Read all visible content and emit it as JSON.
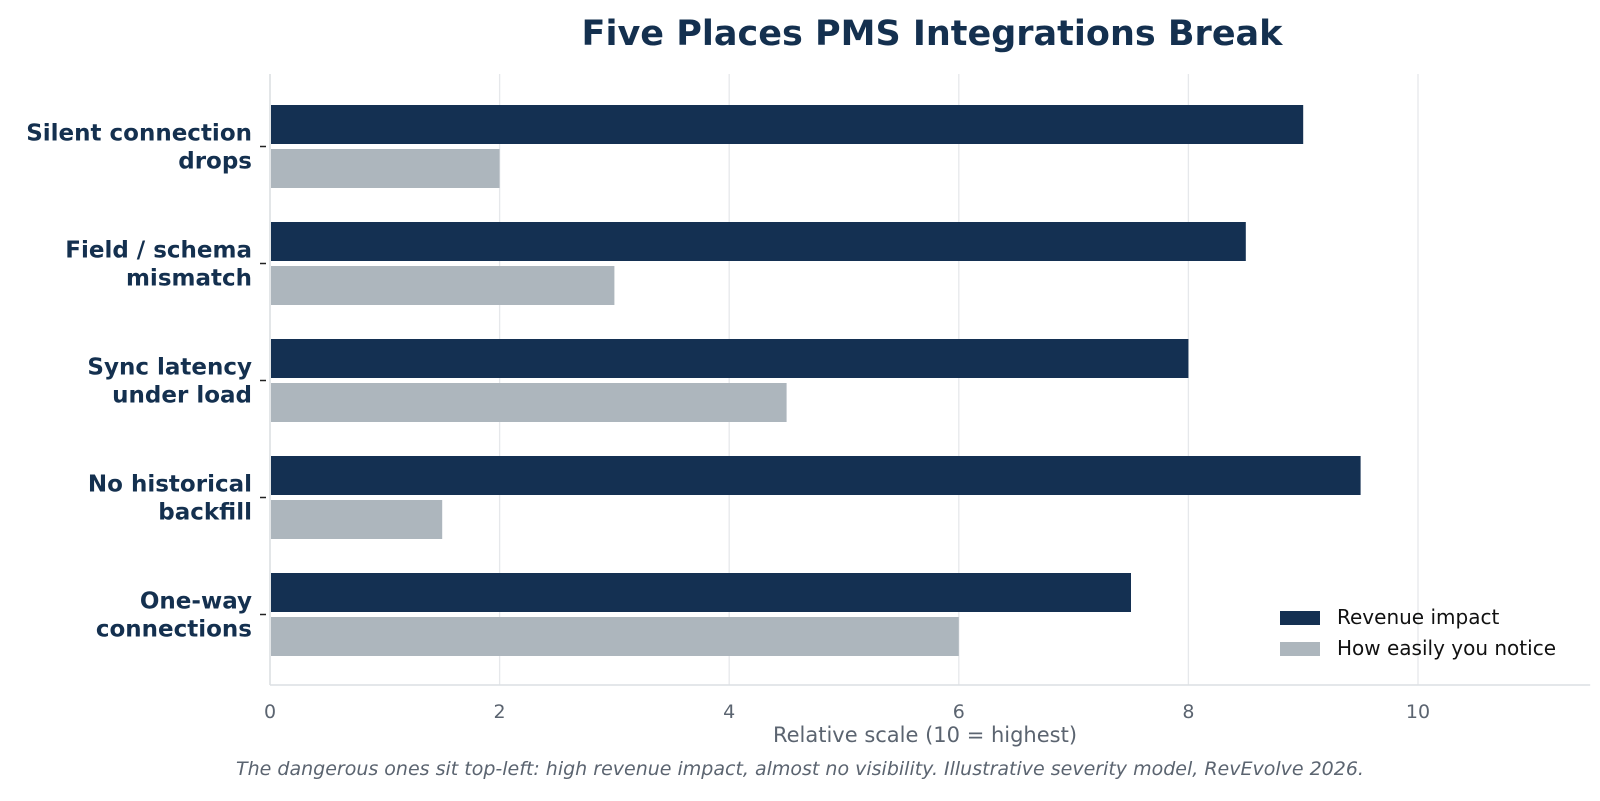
{
  "chart_data": {
    "type": "bar",
    "orientation": "horizontal",
    "title": "Five Places PMS Integrations Break",
    "xlabel": "Relative scale (10 = highest)",
    "caption": "The dangerous ones sit top-left: high revenue impact, almost no visibility. Illustrative severity model, RevEvolve 2026.",
    "categories": [
      [
        "Silent connection",
        "drops"
      ],
      [
        "Field / schema",
        "mismatch"
      ],
      [
        "Sync latency",
        "under load"
      ],
      [
        "No historical",
        "backfill"
      ],
      [
        "One-way",
        "connections"
      ]
    ],
    "series": [
      {
        "name": "Revenue impact",
        "color": "#143052",
        "values": [
          9.0,
          8.5,
          8.0,
          9.5,
          7.5
        ]
      },
      {
        "name": "How easily you notice",
        "color": "#adb6bd",
        "values": [
          2.0,
          3.0,
          4.5,
          1.5,
          6.0
        ]
      }
    ],
    "xlim": [
      0,
      11.5
    ],
    "xticks": [
      0,
      2,
      4,
      6,
      8,
      10
    ],
    "grid": "vertical",
    "legend_position": "bottom-right"
  }
}
